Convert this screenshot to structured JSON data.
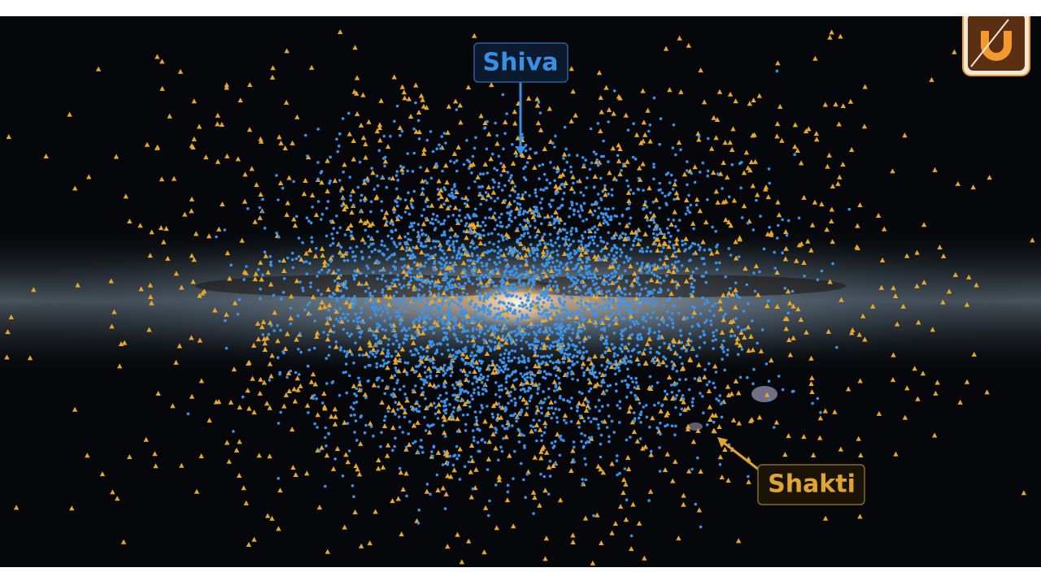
{
  "labels": {
    "shiva": "Shiva",
    "shakti": "Shakti"
  }
}
